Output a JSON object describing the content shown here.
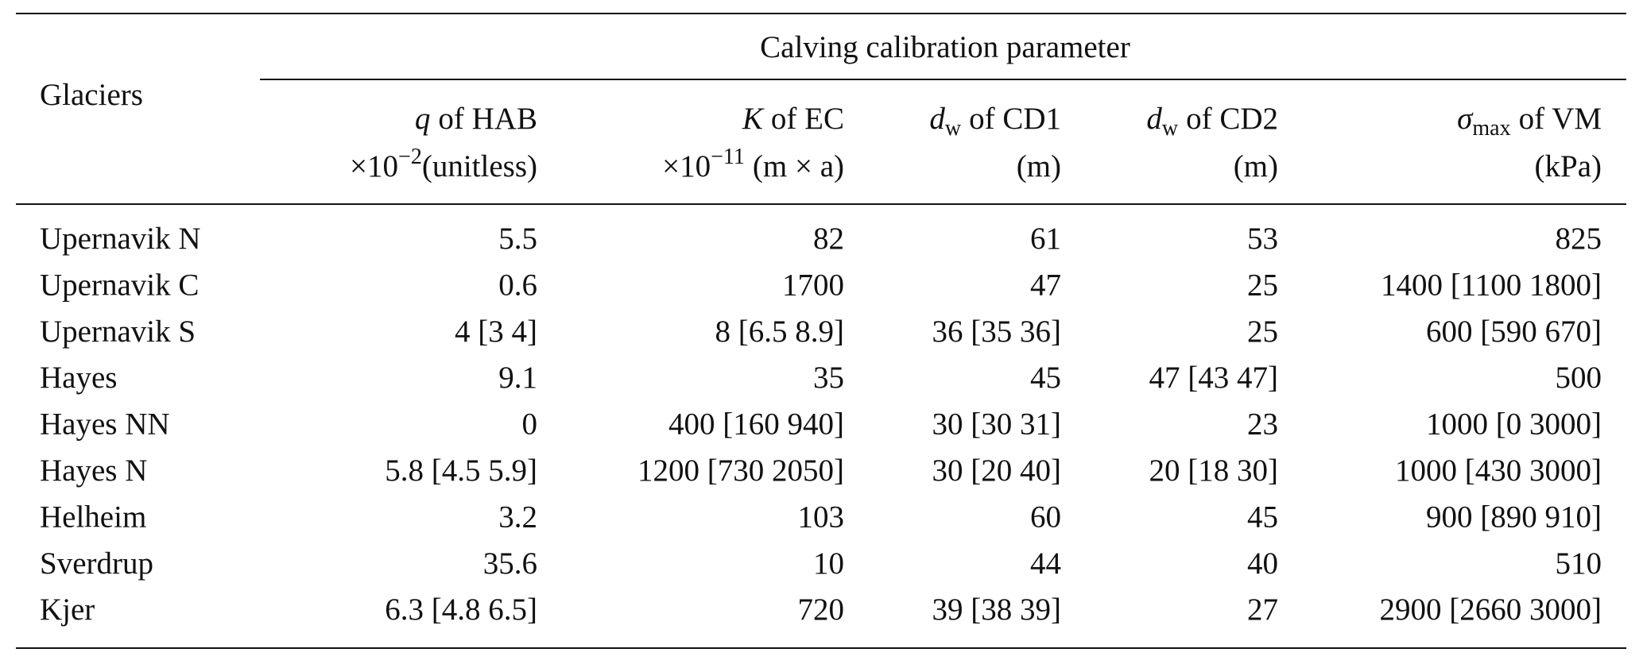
{
  "table": {
    "group_header": "Calving calibration parameter",
    "row_header": "Glaciers",
    "columns": [
      {
        "symbol": "q",
        "name": "of HAB",
        "unit_prefix": "×10",
        "exponent": "−2",
        "unit": "(unitless)"
      },
      {
        "symbol": "K",
        "name": "of EC",
        "unit_prefix": "×10",
        "exponent": "−11",
        "unit": "(m × a)"
      },
      {
        "symbol": "d",
        "subscript": "w",
        "name": "of CD1",
        "unit": "(m)"
      },
      {
        "symbol": "d",
        "subscript": "w",
        "name": "of CD2",
        "unit": "(m)"
      },
      {
        "symbol": "σ",
        "subscript": "max",
        "name": "of VM",
        "unit": "(kPa)"
      }
    ],
    "rows": [
      [
        "Upernavik N",
        "5.5",
        "82",
        "61",
        "53",
        "825"
      ],
      [
        "Upernavik C",
        "0.6",
        "1700",
        "47",
        "25",
        "1400 [1100 1800]"
      ],
      [
        "Upernavik S",
        "4 [3 4]",
        "8 [6.5 8.9]",
        "36 [35 36]",
        "25",
        "600 [590 670]"
      ],
      [
        "Hayes",
        "9.1",
        "35",
        "45",
        "47 [43 47]",
        "500"
      ],
      [
        "Hayes NN",
        "0",
        "400 [160 940]",
        "30 [30 31]",
        "23",
        "1000 [0 3000]"
      ],
      [
        "Hayes N",
        "5.8 [4.5 5.9]",
        "1200 [730 2050]",
        "30 [20 40]",
        "20 [18 30]",
        "1000 [430 3000]"
      ],
      [
        "Helheim",
        "3.2",
        "103",
        "60",
        "45",
        "900 [890 910]"
      ],
      [
        "Sverdrup",
        "35.6",
        "10",
        "44",
        "40",
        "510"
      ],
      [
        "Kjer",
        "6.3 [4.8 6.5]",
        "720",
        "39 [38 39]",
        "27",
        "2900 [2660 3000]"
      ]
    ]
  }
}
